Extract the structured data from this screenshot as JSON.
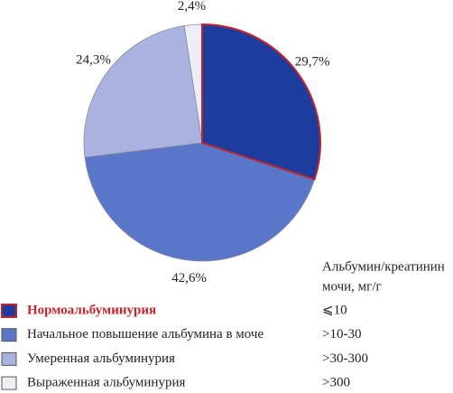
{
  "chart_data": {
    "type": "pie",
    "categories": [
      "Нормоальбуминурия",
      "Начальное повышение альбумина в моче",
      "Умеренная альбуминурия",
      "Выраженная альбуминурия"
    ],
    "values": [
      29.7,
      42.6,
      24.3,
      2.4
    ],
    "value_labels": [
      "29,7%",
      "42,6%",
      "24,3%",
      "2,4%"
    ],
    "colors": [
      "#1c3d9e",
      "#5a76c8",
      "#aab3e0",
      "#eeeef6"
    ],
    "highlight": {
      "index": 0,
      "color": "#c0242c"
    },
    "legend_title": [
      "Альбумин/креатинин",
      "мочи, мг/г"
    ],
    "legend_ranges": [
      "⩽10",
      ">10-30",
      ">30-300",
      ">300"
    ]
  }
}
